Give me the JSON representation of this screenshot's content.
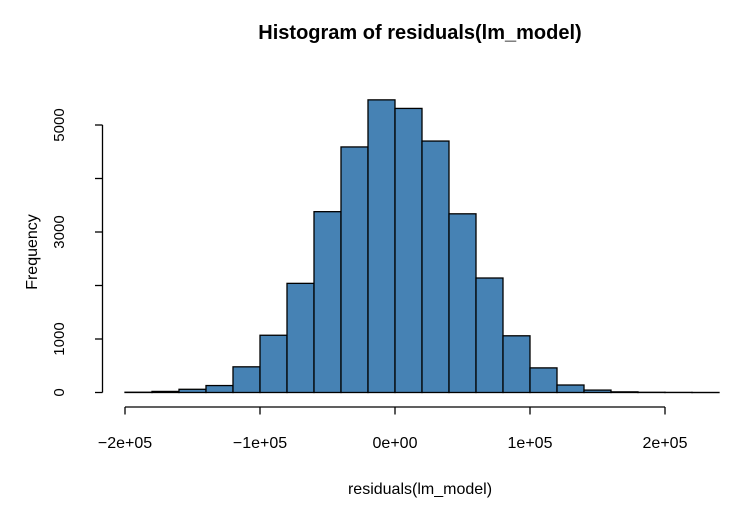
{
  "figure": {
    "background": "#ffffff"
  },
  "chart_data": {
    "type": "bar",
    "subtype": "histogram",
    "title": "Histogram of residuals(lm_model)",
    "xlabel": "residuals(lm_model)",
    "ylabel": "Frequency",
    "bar_fill": "#4682B4",
    "bar_stroke": "#000000",
    "axis_color": "#000000",
    "grid": false,
    "legend": "none",
    "bin_width": 20000,
    "bin_edges": [
      -200000,
      -180000,
      -160000,
      -140000,
      -120000,
      -100000,
      -80000,
      -60000,
      -40000,
      -20000,
      0,
      20000,
      40000,
      60000,
      80000,
      100000,
      120000,
      140000,
      160000,
      180000,
      200000,
      220000,
      240000
    ],
    "counts": [
      5,
      20,
      60,
      130,
      480,
      1070,
      2040,
      3380,
      4590,
      5470,
      5310,
      4700,
      3340,
      2140,
      1060,
      460,
      140,
      45,
      12,
      4,
      2,
      1
    ],
    "x_ticks": {
      "values": [
        -200000,
        -100000,
        0,
        100000,
        200000
      ],
      "labels": [
        "−2e+05",
        "−1e+05",
        "0e+00",
        "1e+05",
        "2e+05"
      ]
    },
    "y_ticks": {
      "values": [
        0,
        1000,
        2000,
        3000,
        4000,
        5000
      ],
      "labels": [
        "0",
        "1000",
        "",
        "3000",
        "",
        "5000"
      ]
    },
    "xlim": [
      -200000,
      240000
    ],
    "ylim": [
      0,
      5500
    ]
  }
}
